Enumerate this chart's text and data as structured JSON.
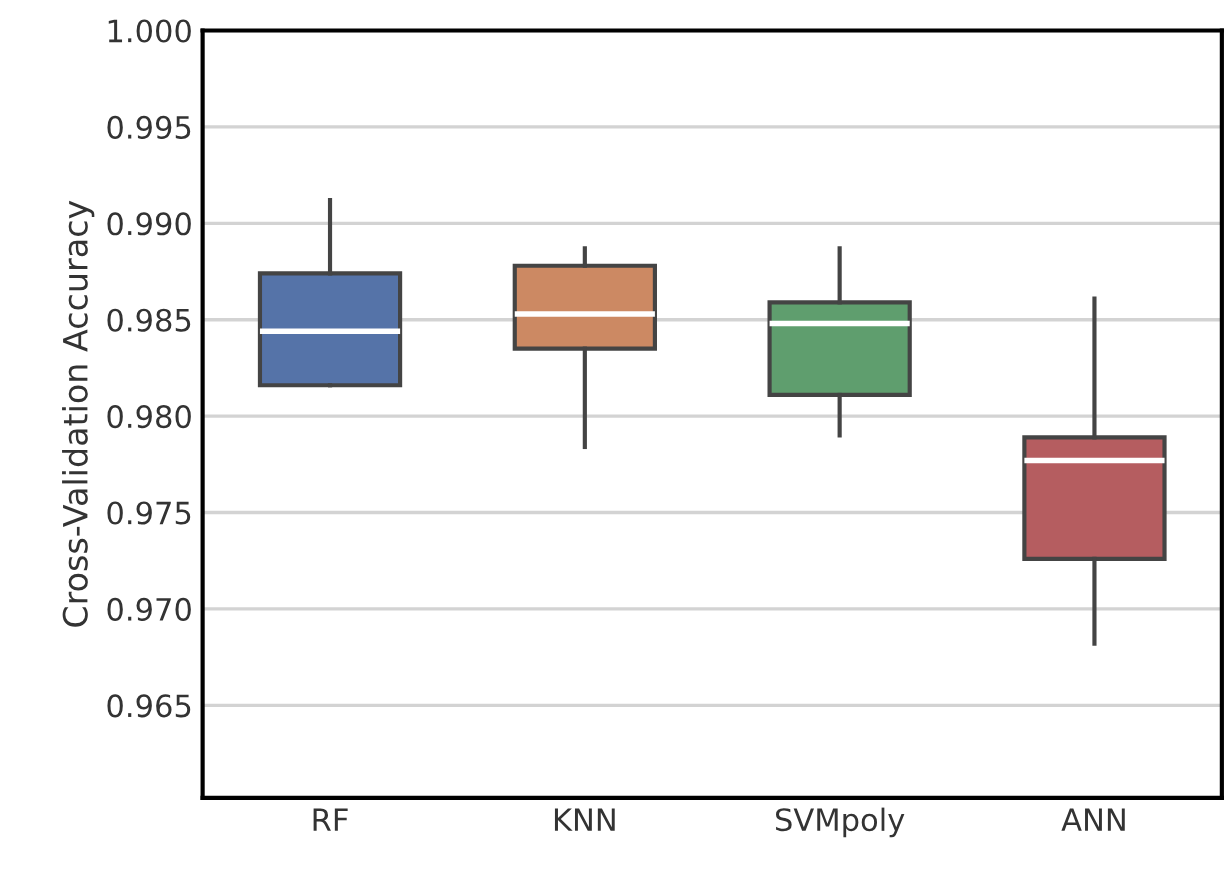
{
  "chart_data": {
    "type": "box",
    "ylabel": "Cross-Validation Accuracy",
    "categories": [
      "RF",
      "KNN",
      "SVMpoly",
      "ANN"
    ],
    "colors": [
      "#5573a8",
      "#cc8963",
      "#5f9e6e",
      "#b55d60"
    ],
    "boxes": [
      {
        "low": 0.9816,
        "q1": 0.9816,
        "median": 0.9844,
        "q3": 0.9874,
        "high": 0.9912
      },
      {
        "low": 0.9784,
        "q1": 0.9835,
        "median": 0.9853,
        "q3": 0.9878,
        "high": 0.9887
      },
      {
        "low": 0.979,
        "q1": 0.9811,
        "median": 0.9848,
        "q3": 0.9859,
        "high": 0.9887
      },
      {
        "low": 0.9682,
        "q1": 0.9726,
        "median": 0.9777,
        "q3": 0.9789,
        "high": 0.9861
      }
    ],
    "ylim": [
      0.9602,
      1.0
    ],
    "yticks": [
      {
        "value": 0.965,
        "label": "0.965"
      },
      {
        "value": 0.97,
        "label": "0.970"
      },
      {
        "value": 0.975,
        "label": "0.975"
      },
      {
        "value": 0.98,
        "label": "0.980"
      },
      {
        "value": 0.985,
        "label": "0.985"
      },
      {
        "value": 0.99,
        "label": "0.990"
      },
      {
        "value": 0.995,
        "label": "0.995"
      },
      {
        "value": 1.0,
        "label": "1.000"
      }
    ],
    "grid": "y"
  }
}
